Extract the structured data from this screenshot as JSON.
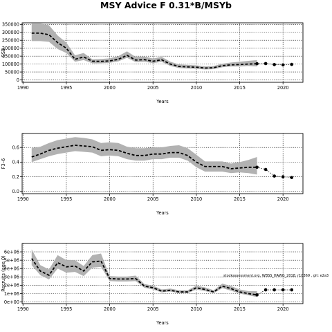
{
  "chart_data": [
    {
      "type": "line",
      "title": "MSY Advice F 0.31*B/MSYb",
      "xlabel": "Years",
      "ylabel": "SSB",
      "xlim": [
        1989.9,
        2022.3
      ],
      "ylim": [
        -15000,
        360000
      ],
      "x_ticks": [
        1990,
        1995,
        2000,
        2005,
        2010,
        2015,
        2020
      ],
      "y_ticks": [
        0,
        50000,
        100000,
        150000,
        200000,
        250000,
        300000,
        350000
      ],
      "y_tick_labels": [
        "0",
        "50000",
        "100000",
        "150000",
        "200000",
        "250000",
        "300000",
        "350000"
      ],
      "grid": true,
      "series": [
        {
          "x": [
            1991,
            1992,
            1993,
            1994,
            1995,
            1996,
            1997,
            1998,
            1999,
            2000,
            2001,
            2002,
            2003,
            2004,
            2005,
            2006,
            2007,
            2008,
            2009,
            2010,
            2011,
            2012,
            2013,
            2014,
            2015,
            2016,
            2017
          ],
          "values": [
            295000,
            295000,
            285000,
            235000,
            200000,
            130000,
            145000,
            118000,
            117000,
            120000,
            130000,
            155000,
            125000,
            128000,
            118000,
            127000,
            100000,
            85000,
            82000,
            80000,
            75000,
            77000,
            90000,
            95000,
            97000,
            100000,
            102000
          ],
          "lower": [
            245000,
            245000,
            240000,
            195000,
            170000,
            115000,
            125000,
            105000,
            105000,
            108000,
            117000,
            140000,
            112000,
            115000,
            106000,
            114000,
            88000,
            75000,
            72000,
            70000,
            66000,
            68000,
            80000,
            85000,
            85000,
            88000,
            85000
          ],
          "upper": [
            355000,
            355000,
            345000,
            280000,
            235000,
            155000,
            170000,
            130000,
            132000,
            136000,
            150000,
            180000,
            145000,
            148000,
            135000,
            145000,
            115000,
            98000,
            95000,
            92000,
            86000,
            88000,
            102000,
            110000,
            115000,
            120000,
            125000
          ]
        }
      ],
      "forecast": {
        "x": [
          2017,
          2018,
          2019,
          2020,
          2021
        ],
        "values": [
          102000,
          103000,
          97000,
          95000,
          98000
        ]
      }
    },
    {
      "type": "line",
      "xlabel": "Years",
      "ylabel": "F3–6",
      "xlim": [
        1989.9,
        2022.3
      ],
      "ylim": [
        -0.03,
        0.79
      ],
      "x_ticks": [
        1990,
        1995,
        2000,
        2005,
        2010,
        2015,
        2020
      ],
      "y_ticks": [
        0.0,
        0.2,
        0.4,
        0.6
      ],
      "y_tick_labels": [
        "0.0",
        "0.2",
        "0.4",
        "0.6"
      ],
      "grid": true,
      "series": [
        {
          "x": [
            1991,
            1992,
            1993,
            1994,
            1995,
            1996,
            1997,
            1998,
            1999,
            2000,
            2001,
            2002,
            2003,
            2004,
            2005,
            2006,
            2007,
            2008,
            2009,
            2010,
            2011,
            2012,
            2013,
            2014,
            2015,
            2016,
            2017
          ],
          "values": [
            0.47,
            0.51,
            0.56,
            0.59,
            0.61,
            0.63,
            0.62,
            0.61,
            0.56,
            0.57,
            0.56,
            0.52,
            0.49,
            0.49,
            0.51,
            0.51,
            0.53,
            0.53,
            0.49,
            0.4,
            0.34,
            0.34,
            0.34,
            0.31,
            0.32,
            0.33,
            0.33
          ],
          "lower": [
            0.4,
            0.44,
            0.48,
            0.51,
            0.53,
            0.55,
            0.54,
            0.53,
            0.48,
            0.49,
            0.48,
            0.44,
            0.42,
            0.42,
            0.44,
            0.44,
            0.46,
            0.46,
            0.42,
            0.33,
            0.27,
            0.27,
            0.27,
            0.25,
            0.26,
            0.25,
            0.23
          ],
          "upper": [
            0.59,
            0.61,
            0.66,
            0.7,
            0.72,
            0.74,
            0.73,
            0.71,
            0.66,
            0.67,
            0.66,
            0.61,
            0.59,
            0.59,
            0.6,
            0.6,
            0.62,
            0.63,
            0.59,
            0.5,
            0.41,
            0.41,
            0.41,
            0.38,
            0.4,
            0.43,
            0.47
          ]
        }
      ],
      "forecast": {
        "x": [
          2017,
          2018,
          2019,
          2020,
          2021
        ],
        "values": [
          0.33,
          0.3,
          0.21,
          0.2,
          0.19
        ]
      }
    },
    {
      "type": "line",
      "xlabel": "Years",
      "ylabel": "Recruits (age 0)",
      "xlim": [
        1989.9,
        2022.3
      ],
      "ylim": [
        -200000,
        7000000
      ],
      "x_ticks": [
        1990,
        1995,
        2000,
        2005,
        2010,
        2015,
        2020
      ],
      "y_ticks": [
        0,
        1000000,
        2000000,
        3000000,
        4000000,
        5000000,
        6000000
      ],
      "y_tick_labels": [
        "0e+00",
        "1e+06",
        "2e+06",
        "3e+06",
        "4e+06",
        "5e+06",
        "6e+06"
      ],
      "grid": true,
      "annotation": "stockassessment.org, WBSS_HAWG_2018, r10369 , git: e2a3",
      "series": [
        {
          "x": [
            1991,
            1992,
            1993,
            1994,
            1995,
            1996,
            1997,
            1998,
            1999,
            2000,
            2001,
            2002,
            2003,
            2004,
            2005,
            2006,
            2007,
            2008,
            2009,
            2010,
            2011,
            2012,
            2013,
            2014,
            2015,
            2016,
            2017
          ],
          "values": [
            5200000,
            3700000,
            3200000,
            4700000,
            4200000,
            4300000,
            3700000,
            4800000,
            4900000,
            2800000,
            2750000,
            2750000,
            2800000,
            1900000,
            1700000,
            1300000,
            1400000,
            1200000,
            1200000,
            1700000,
            1500000,
            1200000,
            1900000,
            1600000,
            1200000,
            1000000,
            850000
          ],
          "lower": [
            4400000,
            3200000,
            2700000,
            4000000,
            3500000,
            3600000,
            3100000,
            4100000,
            4200000,
            2500000,
            2450000,
            2450000,
            2500000,
            1700000,
            1500000,
            1150000,
            1250000,
            1050000,
            1050000,
            1500000,
            1300000,
            1050000,
            1650000,
            1350000,
            1000000,
            800000,
            600000
          ],
          "upper": [
            6300000,
            4400000,
            3900000,
            5600000,
            5000000,
            5000000,
            4300000,
            5600000,
            5800000,
            3100000,
            3050000,
            3050000,
            3150000,
            2150000,
            1950000,
            1500000,
            1600000,
            1400000,
            1400000,
            1950000,
            1750000,
            1400000,
            2200000,
            1900000,
            1500000,
            1300000,
            1300000
          ]
        }
      ],
      "forecast": {
        "x": [
          2017,
          2018,
          2019,
          2020,
          2021
        ],
        "values": [
          850000,
          1450000,
          1450000,
          1450000,
          1450000
        ]
      }
    }
  ]
}
